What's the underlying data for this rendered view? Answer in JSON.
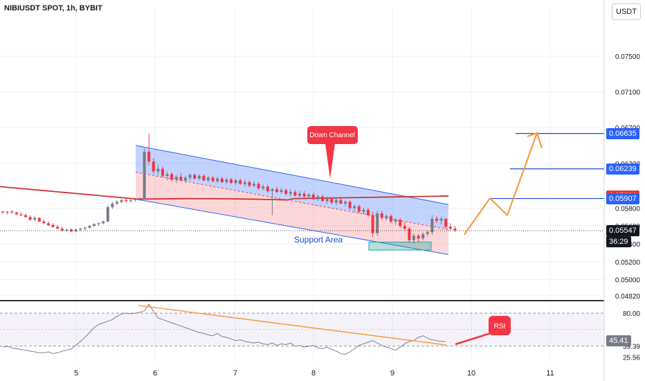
{
  "header": {
    "title": "NIBIUSDT SPOT, 1h, BYBIT",
    "currency_button": "USDT"
  },
  "chart_data": [
    {
      "type": "candlestick",
      "panel": "price",
      "x_ticks": [
        "5",
        "6",
        "7",
        "8",
        "9",
        "10",
        "11"
      ],
      "y_ticks": [
        "0.07500",
        "0.07100",
        "0.06700",
        "0.06300",
        "0.05800",
        "0.05600",
        "0.05400",
        "0.05200",
        "0.05000",
        "0.04820"
      ],
      "ylim": [
        0.0478,
        0.0805
      ],
      "grid": true,
      "price_labels": [
        {
          "label": "0.06635",
          "color": "#2962ff"
        },
        {
          "label": "0.06239",
          "color": "#2962ff"
        },
        {
          "label": "0.05931",
          "color": "#e53935"
        },
        {
          "label": "0.05907",
          "color": "#2962ff"
        },
        {
          "label": "0.05547",
          "color": "#131722"
        }
      ],
      "countdown": "36:29",
      "levels": [
        0.06635,
        0.06239,
        0.05907
      ],
      "ma_value": 0.05931,
      "last_price": 0.05547,
      "annotations": {
        "down_channel": "Down Channel",
        "support_area": "Support Area"
      },
      "ohlc": [
        [
          0.0576,
          0.0577,
          0.0574,
          0.0575
        ],
        [
          0.0575,
          0.0577,
          0.0573,
          0.0576
        ],
        [
          0.0576,
          0.0578,
          0.0574,
          0.0575
        ],
        [
          0.0575,
          0.0576,
          0.0572,
          0.0573
        ],
        [
          0.0573,
          0.0575,
          0.0571,
          0.0572
        ],
        [
          0.0572,
          0.0574,
          0.0569,
          0.057
        ],
        [
          0.057,
          0.0572,
          0.0566,
          0.0567
        ],
        [
          0.0567,
          0.0571,
          0.0565,
          0.0569
        ],
        [
          0.0569,
          0.057,
          0.0564,
          0.0565
        ],
        [
          0.0565,
          0.0567,
          0.0562,
          0.0563
        ],
        [
          0.0563,
          0.0565,
          0.056,
          0.0561
        ],
        [
          0.0561,
          0.0563,
          0.0558,
          0.0559
        ],
        [
          0.0559,
          0.0561,
          0.0556,
          0.0557
        ],
        [
          0.0557,
          0.0559,
          0.0554,
          0.0555
        ],
        [
          0.0555,
          0.0557,
          0.0553,
          0.0556
        ],
        [
          0.0556,
          0.0557,
          0.0553,
          0.0554
        ],
        [
          0.0554,
          0.0557,
          0.0553,
          0.0556
        ],
        [
          0.0556,
          0.0558,
          0.0554,
          0.0557
        ],
        [
          0.0557,
          0.0559,
          0.0555,
          0.0558
        ],
        [
          0.0558,
          0.0561,
          0.0557,
          0.056
        ],
        [
          0.056,
          0.0563,
          0.0559,
          0.0562
        ],
        [
          0.0562,
          0.0564,
          0.056,
          0.0563
        ],
        [
          0.0563,
          0.0566,
          0.0562,
          0.0565
        ],
        [
          0.0565,
          0.0583,
          0.0564,
          0.0581
        ],
        [
          0.0581,
          0.0587,
          0.0579,
          0.0585
        ],
        [
          0.0585,
          0.0589,
          0.0583,
          0.0587
        ],
        [
          0.0587,
          0.059,
          0.0585,
          0.0589
        ],
        [
          0.0589,
          0.0591,
          0.0586,
          0.0588
        ],
        [
          0.0588,
          0.059,
          0.0586,
          0.0589
        ],
        [
          0.0589,
          0.0591,
          0.0587,
          0.059
        ],
        [
          0.059,
          0.0592,
          0.0588,
          0.0591
        ],
        [
          0.0591,
          0.0647,
          0.059,
          0.0643
        ],
        [
          0.0643,
          0.0663,
          0.0628,
          0.0632
        ],
        [
          0.0632,
          0.0636,
          0.0618,
          0.0621
        ],
        [
          0.0621,
          0.0629,
          0.0617,
          0.0624
        ],
        [
          0.0624,
          0.0627,
          0.0614,
          0.0616
        ],
        [
          0.0616,
          0.0621,
          0.0611,
          0.0618
        ],
        [
          0.0618,
          0.062,
          0.061,
          0.0612
        ],
        [
          0.0612,
          0.0617,
          0.0608,
          0.0615
        ],
        [
          0.0615,
          0.0619,
          0.061,
          0.0611
        ],
        [
          0.0611,
          0.0616,
          0.0608,
          0.0614
        ],
        [
          0.0614,
          0.0619,
          0.0611,
          0.0617
        ],
        [
          0.0617,
          0.0619,
          0.0612,
          0.0613
        ],
        [
          0.0613,
          0.0618,
          0.0611,
          0.0616
        ],
        [
          0.0616,
          0.0618,
          0.061,
          0.0611
        ],
        [
          0.0611,
          0.0616,
          0.0609,
          0.0614
        ],
        [
          0.0614,
          0.0616,
          0.0609,
          0.061
        ],
        [
          0.061,
          0.0615,
          0.0608,
          0.0613
        ],
        [
          0.0613,
          0.0615,
          0.0608,
          0.0609
        ],
        [
          0.0609,
          0.0614,
          0.0607,
          0.0612
        ],
        [
          0.0612,
          0.0614,
          0.0607,
          0.0608
        ],
        [
          0.0608,
          0.0613,
          0.0606,
          0.0611
        ],
        [
          0.0611,
          0.0613,
          0.0606,
          0.0607
        ],
        [
          0.0607,
          0.0612,
          0.0604,
          0.0609
        ],
        [
          0.0609,
          0.0611,
          0.0603,
          0.0605
        ],
        [
          0.0605,
          0.061,
          0.0603,
          0.0607
        ],
        [
          0.0607,
          0.0609,
          0.06,
          0.0602
        ],
        [
          0.0602,
          0.0606,
          0.06,
          0.0604
        ],
        [
          0.0604,
          0.0606,
          0.0597,
          0.0599
        ],
        [
          0.0599,
          0.0603,
          0.0572,
          0.0601
        ],
        [
          0.0601,
          0.0604,
          0.0597,
          0.0598
        ],
        [
          0.0598,
          0.0603,
          0.0596,
          0.06
        ],
        [
          0.06,
          0.0602,
          0.0594,
          0.0596
        ],
        [
          0.0596,
          0.0601,
          0.0593,
          0.0598
        ],
        [
          0.0598,
          0.06,
          0.0593,
          0.0594
        ],
        [
          0.0594,
          0.0599,
          0.0592,
          0.0596
        ],
        [
          0.0596,
          0.0599,
          0.0591,
          0.0593
        ],
        [
          0.0593,
          0.0597,
          0.059,
          0.0595
        ],
        [
          0.0595,
          0.0597,
          0.0589,
          0.059
        ],
        [
          0.059,
          0.0595,
          0.0588,
          0.0593
        ],
        [
          0.0593,
          0.0595,
          0.0587,
          0.0588
        ],
        [
          0.0588,
          0.0593,
          0.0585,
          0.059
        ],
        [
          0.059,
          0.0592,
          0.0584,
          0.0586
        ],
        [
          0.0586,
          0.0591,
          0.0583,
          0.0589
        ],
        [
          0.0589,
          0.0591,
          0.0584,
          0.0585
        ],
        [
          0.0585,
          0.0589,
          0.0582,
          0.0587
        ],
        [
          0.0587,
          0.0589,
          0.0578,
          0.058
        ],
        [
          0.058,
          0.0584,
          0.0576,
          0.0582
        ],
        [
          0.0582,
          0.0584,
          0.0574,
          0.0576
        ],
        [
          0.0576,
          0.058,
          0.0573,
          0.0578
        ],
        [
          0.0578,
          0.058,
          0.057,
          0.0572
        ],
        [
          0.0572,
          0.0576,
          0.0548,
          0.0552
        ],
        [
          0.0552,
          0.0577,
          0.0549,
          0.0574
        ],
        [
          0.0574,
          0.0577,
          0.0567,
          0.0569
        ],
        [
          0.0569,
          0.0573,
          0.0566,
          0.0571
        ],
        [
          0.0571,
          0.0573,
          0.0563,
          0.0565
        ],
        [
          0.0565,
          0.0569,
          0.0561,
          0.0567
        ],
        [
          0.0567,
          0.0569,
          0.0558,
          0.056
        ],
        [
          0.056,
          0.0564,
          0.0555,
          0.0557
        ],
        [
          0.0557,
          0.0559,
          0.0541,
          0.0544
        ],
        [
          0.0544,
          0.0552,
          0.054,
          0.0549
        ],
        [
          0.0549,
          0.0551,
          0.0542,
          0.0546
        ],
        [
          0.0546,
          0.0553,
          0.0544,
          0.0551
        ],
        [
          0.0551,
          0.0555,
          0.0548,
          0.0553
        ],
        [
          0.0553,
          0.0572,
          0.055,
          0.0568
        ],
        [
          0.0568,
          0.0571,
          0.0563,
          0.0566
        ],
        [
          0.0566,
          0.057,
          0.0562,
          0.0568
        ],
        [
          0.0568,
          0.0569,
          0.0557,
          0.0559
        ],
        [
          0.0559,
          0.0563,
          0.0555,
          0.0557
        ],
        [
          0.0557,
          0.056,
          0.0553,
          0.0555
        ]
      ]
    },
    {
      "type": "line",
      "panel": "indicator",
      "name": "RSI",
      "y_ticks": [
        "80.00",
        "45.41",
        "39.39",
        "25.56"
      ],
      "ylim": [
        20,
        92
      ],
      "levels": [
        80,
        39.39
      ],
      "current_value": 45.41,
      "values": [
        38,
        39,
        37,
        36,
        35,
        34,
        33,
        32,
        31,
        31,
        32,
        30,
        31,
        33,
        34,
        36,
        40,
        45,
        50,
        56,
        62,
        66,
        68,
        70,
        72,
        76,
        79,
        80,
        79,
        80,
        81,
        83,
        91,
        82,
        74,
        72,
        70,
        68,
        66,
        64,
        62,
        60,
        58,
        56,
        55,
        53,
        52,
        55,
        51,
        50,
        48,
        46,
        47,
        45,
        44,
        43,
        44,
        42,
        41,
        43,
        40,
        42,
        41,
        43,
        39,
        40,
        38,
        39,
        40,
        37,
        36,
        38,
        35,
        33,
        30,
        29,
        32,
        36,
        40,
        42,
        44,
        46,
        43,
        40,
        38,
        36,
        34,
        38,
        42,
        45,
        46,
        50,
        52,
        49,
        47,
        46,
        45,
        45
      ]
    }
  ]
}
